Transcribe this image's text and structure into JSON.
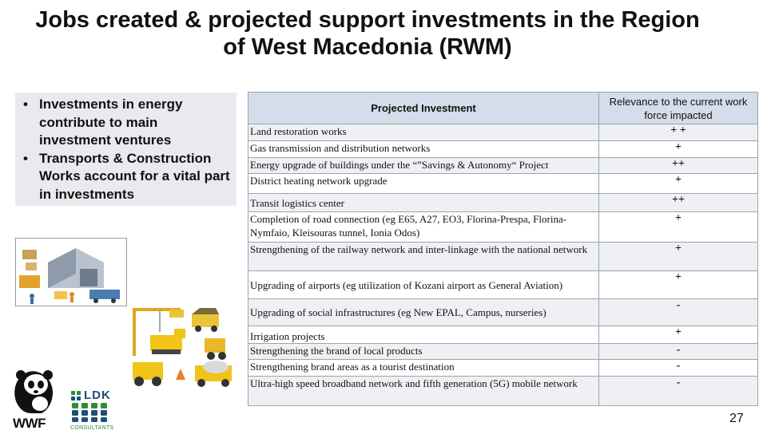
{
  "title": {
    "line1": "Jobs created & projected support investments in the Region",
    "line2": "of West Macedonia (RWM)"
  },
  "bullets": [
    "Investments in energy contribute to main investment ventures",
    "Transports & Construction Works account for a vital part in investments"
  ],
  "table": {
    "headers": {
      "investment": "Projected Investment",
      "relevance": "Relevance to the current work force impacted"
    },
    "rows": [
      {
        "investment": "Land restoration works",
        "relevance": "+ +"
      },
      {
        "investment": "Gas transmission and distribution networks",
        "relevance": "+"
      },
      {
        "investment": "Energy upgrade of buildings under the “”Savings & Autonomy“ Project",
        "relevance": "++"
      },
      {
        "investment": "District heating network upgrade",
        "relevance": "+"
      },
      {
        "investment": "Transit logistics center",
        "relevance": "++"
      },
      {
        "investment": "Completion of road connection (eg E65, A27, EO3, Florina-Prespa, Florina-Nymfaio, Kleisouras tunnel, Ionia Odos)",
        "relevance": "+"
      },
      {
        "investment": "Strengthening of the railway network and inter-linkage  with the national network",
        "relevance": "+"
      },
      {
        "investment": "Upgrading of airports (eg utilization of Kozani airport as General Aviation)",
        "relevance": "+"
      },
      {
        "investment": "Upgrading of social infrastructures (eg New EPAL, Campus, nurseries)",
        "relevance": "-"
      },
      {
        "investment": "Irrigation projects",
        "relevance": "+"
      },
      {
        "investment": "Strengthening the brand of local products",
        "relevance": "-"
      },
      {
        "investment": "Strengthening brand areas as a tourist destination",
        "relevance": "-"
      },
      {
        "investment": "Ultra-high speed broadband network and fifth generation (5G) mobile network",
        "relevance": "-"
      }
    ]
  },
  "logos": {
    "wwf_text": "WWF",
    "ldk_text": "LDK",
    "ldk_sub": "CONSULTANTS"
  },
  "page_number": "27",
  "colors": {
    "header_bg": "#d4dde9",
    "bullet_box_bg": "#e8eaee",
    "ldk_green": "#2e8b3a",
    "ldk_navy": "#1f4e79"
  }
}
